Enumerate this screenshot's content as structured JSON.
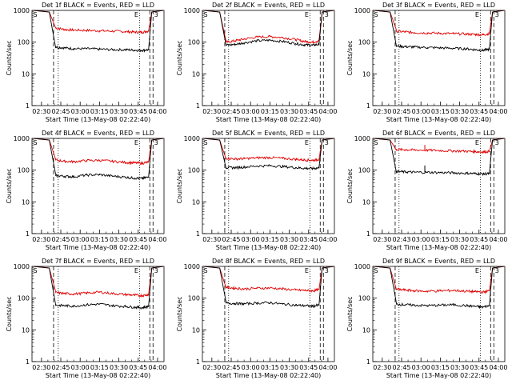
{
  "colors": {
    "events": "#000000",
    "lld": "#e00000",
    "axis": "#000000"
  },
  "shared": {
    "xlabel": "Start Time (13-May-08 02:22:40)",
    "ylabel": "Counts/sec",
    "xticks": [
      "02:30",
      "02:45",
      "03:00",
      "03:15",
      "03:30",
      "03:45",
      "04:00"
    ],
    "xticks_alt": [
      "02:30",
      "02:43",
      "03:00",
      "03:15",
      "03:30",
      "03:45",
      "04:00"
    ],
    "yticks": [
      "1",
      "10",
      "100",
      "1000"
    ],
    "marker_s": "S",
    "marker_e": "E",
    "marker_3": "3",
    "ylim": [
      1,
      1000
    ],
    "scale": "log"
  },
  "chart_data": [
    {
      "type": "line",
      "title": "Det 1f BLACK = Events, RED = LLD",
      "series": [
        {
          "values": [
            70,
            66,
            62,
            62,
            60,
            58,
            58,
            56,
            55,
            58
          ]
        },
        {
          "values": [
            280,
            250,
            240,
            235,
            228,
            222,
            215,
            208,
            205,
            225
          ]
        }
      ],
      "x": [
        "02:41",
        "02:48",
        "02:55",
        "03:05",
        "03:15",
        "03:25",
        "03:35",
        "03:42",
        "03:48",
        "03:53"
      ]
    },
    {
      "type": "line",
      "title": "Det 2f BLACK = Events, RED = LLD",
      "series": [
        {
          "values": [
            80,
            85,
            95,
            110,
            115,
            105,
            90,
            82,
            80,
            85
          ]
        },
        {
          "values": [
            100,
            110,
            125,
            145,
            150,
            140,
            120,
            105,
            100,
            110
          ]
        }
      ],
      "x": [
        "02:41",
        "02:48",
        "02:55",
        "03:05",
        "03:15",
        "03:25",
        "03:35",
        "03:42",
        "03:48",
        "03:53"
      ]
    },
    {
      "type": "line",
      "title": "Det 3f BLACK = Events, RED = LLD",
      "series": [
        {
          "values": [
            75,
            72,
            70,
            68,
            66,
            64,
            62,
            58,
            55,
            60
          ]
        },
        {
          "values": [
            220,
            210,
            200,
            195,
            190,
            185,
            180,
            175,
            170,
            185
          ]
        }
      ],
      "x": [
        "02:41",
        "02:48",
        "02:55",
        "03:05",
        "03:15",
        "03:25",
        "03:35",
        "03:42",
        "03:48",
        "03:53"
      ]
    },
    {
      "type": "line",
      "title": "Det 4f BLACK = Events, RED = LLD",
      "series": [
        {
          "values": [
            68,
            64,
            62,
            70,
            72,
            65,
            60,
            56,
            55,
            60
          ]
        },
        {
          "values": [
            210,
            190,
            185,
            200,
            205,
            190,
            175,
            170,
            165,
            180
          ]
        }
      ],
      "x": [
        "02:41",
        "02:48",
        "02:55",
        "03:05",
        "03:15",
        "03:25",
        "03:35",
        "03:42",
        "03:48",
        "03:53"
      ]
    },
    {
      "type": "line",
      "title": "Det 5f BLACK = Events, RED = LLD",
      "series": [
        {
          "values": [
            120,
            120,
            125,
            135,
            138,
            130,
            120,
            115,
            112,
            118
          ]
        },
        {
          "values": [
            240,
            225,
            230,
            245,
            250,
            235,
            220,
            210,
            205,
            215
          ]
        }
      ],
      "x": [
        "02:41",
        "02:48",
        "02:55",
        "03:05",
        "03:15",
        "03:25",
        "03:35",
        "03:42",
        "03:48",
        "03:53"
      ]
    },
    {
      "type": "line",
      "title": "Det 6f BLACK = Events, RED = LLD",
      "series": [
        {
          "values": [
            90,
            88,
            86,
            85,
            84,
            82,
            80,
            78,
            76,
            78
          ]
        },
        {
          "values": [
            450,
            440,
            430,
            425,
            415,
            405,
            395,
            385,
            375,
            385
          ]
        }
      ],
      "x": [
        "02:41",
        "02:48",
        "02:55",
        "03:05",
        "03:15",
        "03:25",
        "03:35",
        "03:42",
        "03:48",
        "03:53"
      ]
    },
    {
      "type": "line",
      "title": "Det 7f BLACK = Events, RED = LLD",
      "series": [
        {
          "values": [
            60,
            58,
            56,
            62,
            65,
            58,
            55,
            52,
            50,
            55
          ]
        },
        {
          "values": [
            150,
            140,
            135,
            145,
            155,
            140,
            130,
            125,
            120,
            130
          ]
        }
      ],
      "x": [
        "02:41",
        "02:48",
        "02:55",
        "03:05",
        "03:15",
        "03:25",
        "03:35",
        "03:42",
        "03:48",
        "03:53"
      ]
    },
    {
      "type": "line",
      "title": "Det 8f BLACK = Events, RED = LLD",
      "series": [
        {
          "values": [
            70,
            68,
            66,
            70,
            72,
            65,
            60,
            58,
            56,
            60
          ]
        },
        {
          "values": [
            220,
            205,
            195,
            205,
            210,
            195,
            180,
            175,
            170,
            185
          ]
        }
      ],
      "x": [
        "02:41",
        "02:48",
        "02:55",
        "03:05",
        "03:15",
        "03:25",
        "03:35",
        "03:42",
        "03:48",
        "03:53"
      ]
    },
    {
      "type": "line",
      "title": "Det 9f BLACK = Events, RED = LLD",
      "series": [
        {
          "values": [
            65,
            62,
            60,
            58,
            60,
            62,
            58,
            55,
            52,
            58
          ]
        },
        {
          "values": [
            190,
            180,
            170,
            165,
            170,
            175,
            165,
            160,
            155,
            170
          ]
        }
      ],
      "x": [
        "02:41",
        "02:48",
        "02:55",
        "03:05",
        "03:15",
        "03:25",
        "03:35",
        "03:42",
        "03:48",
        "03:53"
      ]
    }
  ]
}
